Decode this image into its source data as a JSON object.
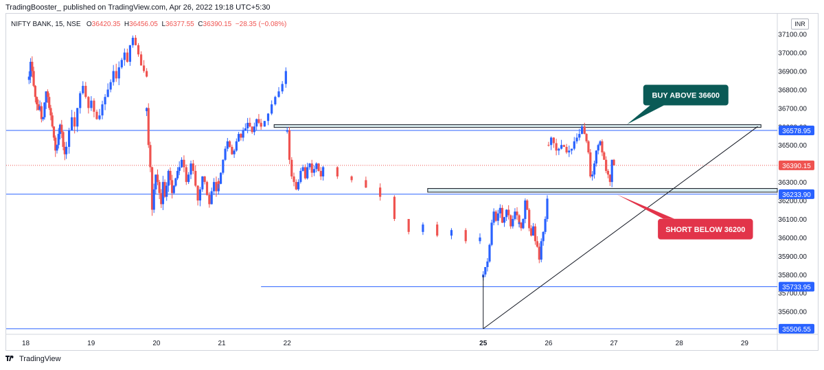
{
  "header": {
    "publisher_line": "TradingBooster_ published on TradingView.com, Apr 26, 2022 19:18 UTC+5:30",
    "symbol": "NIFTY BANK, 15, NSE",
    "ohlc": [
      {
        "key": "O",
        "value": "36420.35"
      },
      {
        "key": "H",
        "value": "36456.05"
      },
      {
        "key": "L",
        "value": "36377.55"
      },
      {
        "key": "C",
        "value": "36390.15"
      }
    ],
    "change": "−28.35 (−0.08%)",
    "currency": "INR"
  },
  "footer": {
    "brand": "TradingView",
    "logo_icon": "tradingview-logo-icon"
  },
  "chart_data": {
    "type": "candlestick",
    "y_range": [
      35480,
      37210
    ],
    "x_range": [
      17.7,
      29.5
    ],
    "y_ticks": [
      "37100.00",
      "37000.00",
      "36900.00",
      "36800.00",
      "36700.00",
      "36600.00",
      "36500.00",
      "36300.00",
      "36200.00",
      "36100.00",
      "36000.00",
      "35900.00",
      "35800.00",
      "35700.00",
      "35600.00"
    ],
    "x_ticks": [
      {
        "label": "18",
        "x": 18,
        "bold": false
      },
      {
        "label": "19",
        "x": 19,
        "bold": false
      },
      {
        "label": "20",
        "x": 20,
        "bold": false
      },
      {
        "label": "21",
        "x": 21,
        "bold": false
      },
      {
        "label": "22",
        "x": 22,
        "bold": false
      },
      {
        "label": "25",
        "x": 25,
        "bold": true
      },
      {
        "label": "26",
        "x": 26,
        "bold": false
      },
      {
        "label": "27",
        "x": 27,
        "bold": false
      },
      {
        "label": "28",
        "x": 28,
        "bold": false
      },
      {
        "label": "29",
        "x": 29,
        "bold": false
      }
    ],
    "price_levels": [
      {
        "label": "36578.95",
        "value": 36578.95,
        "start_x": 17.7,
        "color": "#2962ff",
        "style": "solid"
      },
      {
        "label": "36390.15",
        "value": 36390.15,
        "start_x": 17.7,
        "color": "#ef5350",
        "style": "dotted"
      },
      {
        "label": "36233.90",
        "value": 36233.9,
        "start_x": 17.7,
        "color": "#2962ff",
        "style": "solid"
      },
      {
        "label": "35733.95",
        "value": 35733.95,
        "start_x": 21.6,
        "color": "#2962ff",
        "style": "solid"
      },
      {
        "label": "35506.55",
        "value": 35506.55,
        "start_x": 17.7,
        "color": "#2962ff",
        "style": "solid"
      }
    ],
    "zones": [
      {
        "x1": 21.8,
        "x2": 29.25,
        "y_top": 36610,
        "y_bottom": 36595
      },
      {
        "x1": 24.15,
        "x2": 29.5,
        "y_top": 36265,
        "y_bottom": 36245
      }
    ],
    "trendlines": [
      {
        "x1": 25.0,
        "y1": 35506.55,
        "x2": 29.2,
        "y2": 36600
      },
      {
        "x1": 25.0,
        "y1": 35506.55,
        "x2": 25.0,
        "y2": 35795
      }
    ],
    "annotations": [
      {
        "text": "BUY ABOVE 36600",
        "x": 28.1,
        "y": 36770,
        "color": "#0a5a56",
        "pointer": {
          "x": 27.2,
          "y": 36612
        }
      },
      {
        "text": "SHORT BELOW 36200",
        "x": 28.4,
        "y": 36045,
        "color": "#e2344a",
        "pointer": {
          "x": 27.05,
          "y": 36232
        }
      }
    ],
    "segments": [
      {
        "x0": 18.05,
        "x1": 18.62,
        "closes": [
          36870,
          36950,
          36900,
          36820,
          36760,
          36720,
          36690,
          36710,
          36640,
          36650,
          36730,
          36790,
          36760,
          36700,
          36660,
          36600,
          36540,
          36470,
          36500,
          36560,
          36610,
          36570,
          36490,
          36450,
          36490
        ],
        "amp": 45
      },
      {
        "x0": 18.62,
        "x1": 19.85,
        "closes": [
          36490,
          36580,
          36650,
          36600,
          36700,
          36780,
          36820,
          36760,
          36700,
          36740,
          36680,
          36640,
          36660,
          36720,
          36760,
          36800,
          36840,
          36900,
          36860,
          36920,
          36960,
          37000,
          36950,
          37040,
          37080,
          37040,
          36990,
          36930,
          36900,
          36870
        ],
        "amp": 50
      },
      {
        "x0": 19.85,
        "x1": 20.35,
        "closes": [
          36700,
          36500,
          36380,
          36150,
          36260,
          36340,
          36300,
          36240,
          36180,
          36300,
          36220,
          36280,
          36360,
          36310,
          36240,
          36280,
          36320,
          36360,
          36380
        ],
        "amp": 45
      },
      {
        "x0": 20.35,
        "x1": 20.95,
        "closes": [
          36380,
          36420,
          36380,
          36300,
          36340,
          36400,
          36360,
          36280,
          36200,
          36260,
          36330,
          36300,
          36230,
          36180,
          36250,
          36300,
          36250,
          36290
        ],
        "amp": 40
      },
      {
        "x0": 20.95,
        "x1": 21.6,
        "closes": [
          36290,
          36350,
          36420,
          36480,
          36520,
          36490,
          36450,
          36470,
          36520,
          36560,
          36540,
          36580,
          36590,
          36620,
          36600,
          36570,
          36600,
          36640,
          36620,
          36600
        ],
        "amp": 35
      },
      {
        "x0": 21.6,
        "x1": 21.98,
        "closes": [
          36600,
          36630,
          36670,
          36720,
          36760,
          36790,
          36830,
          36900
        ],
        "amp": 30
      },
      {
        "x0": 22.0,
        "x1": 22.55,
        "closes": [
          36580,
          36420,
          36330,
          36300,
          36260,
          36300,
          36360,
          36380,
          36320,
          36380,
          36400,
          36350,
          36370,
          36400,
          36360,
          36330,
          36380
        ],
        "amp": 30
      },
      {
        "x0": 22.55,
        "x1": 24.95,
        "closes": [
          36380,
          36330,
          36310,
          36270,
          36220,
          36100,
          36030,
          36070,
          36010,
          36040,
          35980,
          36000
        ],
        "amp": 30
      },
      {
        "x0": 25.0,
        "x1": 25.55,
        "closes": [
          35800,
          35840,
          35870,
          35960,
          36080,
          36140,
          36090,
          36130,
          36160,
          36080,
          36110,
          36150,
          36120,
          36060,
          36100,
          36140,
          36120,
          36080
        ],
        "amp": 35
      },
      {
        "x0": 25.55,
        "x1": 25.98,
        "closes": [
          36080,
          36050,
          36100,
          36200,
          36150,
          36050,
          36010,
          36060,
          35980,
          35950,
          35880,
          35980,
          36030,
          36100,
          36210
        ],
        "amp": 35
      },
      {
        "x0": 26.0,
        "x1": 26.55,
        "closes": [
          36500,
          36540,
          36510,
          36470,
          36480,
          36500,
          36490,
          36460,
          36470,
          36480,
          36520,
          36540,
          36560,
          36600,
          36570
        ],
        "amp": 35
      },
      {
        "x0": 26.55,
        "x1": 27.0,
        "closes": [
          36560,
          36520,
          36460,
          36330,
          36340,
          36400,
          36470,
          36500,
          36520,
          36460,
          36420,
          36360,
          36340,
          36300,
          36420,
          36390
        ],
        "amp": 35
      }
    ],
    "colors": {
      "up": "#2962ff",
      "down": "#ef5350"
    }
  }
}
